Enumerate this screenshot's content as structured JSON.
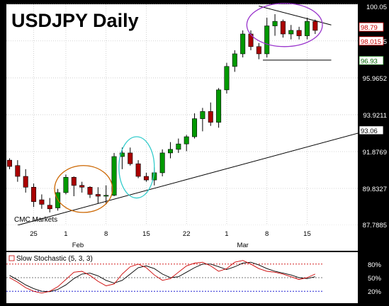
{
  "chart_data": {
    "type": "candlestick",
    "title": "USDJPY Daily",
    "source_label": "CMC Markets",
    "y_ticks": [
      {
        "value": 100.05,
        "label": "100.05"
      },
      {
        "value": 98.0152,
        "label": "98.015"
      },
      {
        "value": 95.9652,
        "label": "95.9652"
      },
      {
        "value": 93.9211,
        "label": "93.9211"
      },
      {
        "value": 91.8769,
        "label": "91.8769"
      },
      {
        "value": 89.8327,
        "label": "89.8327"
      },
      {
        "value": 87.7885,
        "label": "87.7885"
      }
    ],
    "y_range": [
      87.7885,
      100.05
    ],
    "x_ticks": [
      {
        "index": 3,
        "label": "25"
      },
      {
        "index": 7,
        "label": "1"
      },
      {
        "index": 12,
        "label": "8"
      },
      {
        "index": 17,
        "label": "15"
      },
      {
        "index": 22,
        "label": "22"
      },
      {
        "index": 27,
        "label": "1"
      },
      {
        "index": 32,
        "label": "8"
      },
      {
        "index": 37,
        "label": "15"
      }
    ],
    "month_labels": [
      {
        "index": 8.5,
        "label": "Feb"
      },
      {
        "index": 29,
        "label": "Mar"
      }
    ],
    "bar_count": 39,
    "price_tags": [
      {
        "value": 98.79,
        "label": "98.79",
        "color": "#cc0000",
        "bg": "#ffffff"
      },
      {
        "value": 98.015,
        "label": "98.015",
        "color": "#cc0000",
        "bg": "#ffffff"
      },
      {
        "value": 96.93,
        "label": "96.93",
        "color": "#006600",
        "bg": "#ffffff"
      },
      {
        "value": 93.06,
        "label": "93.06",
        "color": "#000000",
        "bg": "#ffffff"
      }
    ],
    "candles": [
      {
        "i": 0,
        "o": 91.4,
        "h": 91.5,
        "l": 90.9,
        "c": 91.05
      },
      {
        "i": 1,
        "o": 91.1,
        "h": 91.4,
        "l": 90.2,
        "c": 90.5
      },
      {
        "i": 2,
        "o": 90.5,
        "h": 90.9,
        "l": 89.6,
        "c": 89.9
      },
      {
        "i": 3,
        "o": 89.9,
        "h": 90.1,
        "l": 88.8,
        "c": 89.1
      },
      {
        "i": 4,
        "o": 89.2,
        "h": 89.5,
        "l": 88.7,
        "c": 88.95
      },
      {
        "i": 5,
        "o": 88.9,
        "h": 89.3,
        "l": 88.5,
        "c": 88.7
      },
      {
        "i": 6,
        "o": 88.75,
        "h": 89.8,
        "l": 88.6,
        "c": 89.6
      },
      {
        "i": 7,
        "o": 89.6,
        "h": 90.6,
        "l": 89.5,
        "c": 90.45
      },
      {
        "i": 8,
        "o": 90.45,
        "h": 90.5,
        "l": 89.4,
        "c": 90.0
      },
      {
        "i": 9,
        "o": 90.0,
        "h": 90.2,
        "l": 89.6,
        "c": 89.9
      },
      {
        "i": 10,
        "o": 89.9,
        "h": 89.95,
        "l": 89.3,
        "c": 89.5
      },
      {
        "i": 11,
        "o": 89.5,
        "h": 89.9,
        "l": 89.0,
        "c": 89.4
      },
      {
        "i": 12,
        "o": 89.4,
        "h": 90.0,
        "l": 88.95,
        "c": 89.45
      },
      {
        "i": 13,
        "o": 89.45,
        "h": 91.8,
        "l": 89.4,
        "c": 91.6
      },
      {
        "i": 14,
        "o": 91.6,
        "h": 92.1,
        "l": 90.9,
        "c": 91.8
      },
      {
        "i": 15,
        "o": 91.8,
        "h": 92.1,
        "l": 91.1,
        "c": 91.2
      },
      {
        "i": 16,
        "o": 91.2,
        "h": 91.4,
        "l": 90.4,
        "c": 90.5
      },
      {
        "i": 17,
        "o": 90.5,
        "h": 90.7,
        "l": 90.2,
        "c": 90.3
      },
      {
        "i": 18,
        "o": 90.3,
        "h": 91.0,
        "l": 90.0,
        "c": 90.7
      },
      {
        "i": 19,
        "o": 90.7,
        "h": 92.0,
        "l": 90.5,
        "c": 91.8
      },
      {
        "i": 20,
        "o": 91.8,
        "h": 92.4,
        "l": 91.5,
        "c": 92.0
      },
      {
        "i": 21,
        "o": 92.0,
        "h": 92.6,
        "l": 91.8,
        "c": 92.3
      },
      {
        "i": 22,
        "o": 92.3,
        "h": 92.8,
        "l": 91.9,
        "c": 92.7
      },
      {
        "i": 23,
        "o": 92.7,
        "h": 94.0,
        "l": 92.6,
        "c": 93.7
      },
      {
        "i": 24,
        "o": 93.7,
        "h": 94.3,
        "l": 93.0,
        "c": 94.1
      },
      {
        "i": 25,
        "o": 94.1,
        "h": 94.6,
        "l": 93.3,
        "c": 93.5
      },
      {
        "i": 26,
        "o": 93.5,
        "h": 95.4,
        "l": 93.2,
        "c": 95.3
      },
      {
        "i": 27,
        "o": 95.3,
        "h": 96.8,
        "l": 95.1,
        "c": 96.6
      },
      {
        "i": 28,
        "o": 96.6,
        "h": 97.5,
        "l": 96.3,
        "c": 97.3
      },
      {
        "i": 29,
        "o": 97.3,
        "h": 98.6,
        "l": 97.1,
        "c": 98.4
      },
      {
        "i": 30,
        "o": 98.4,
        "h": 98.6,
        "l": 97.5,
        "c": 97.7
      },
      {
        "i": 31,
        "o": 97.7,
        "h": 97.9,
        "l": 97.0,
        "c": 97.3
      },
      {
        "i": 32,
        "o": 97.3,
        "h": 99.3,
        "l": 97.1,
        "c": 98.85
      },
      {
        "i": 33,
        "o": 98.85,
        "h": 99.5,
        "l": 98.3,
        "c": 99.1
      },
      {
        "i": 34,
        "o": 99.1,
        "h": 99.2,
        "l": 98.2,
        "c": 98.4
      },
      {
        "i": 35,
        "o": 98.4,
        "h": 98.9,
        "l": 98.1,
        "c": 98.6
      },
      {
        "i": 36,
        "o": 98.6,
        "h": 98.8,
        "l": 98.1,
        "c": 98.3
      },
      {
        "i": 37,
        "o": 98.3,
        "h": 99.3,
        "l": 98.1,
        "c": 99.1
      },
      {
        "i": 38,
        "o": 99.1,
        "h": 99.2,
        "l": 98.4,
        "c": 98.6
      }
    ],
    "trendlines": [
      {
        "from": {
          "i": 1,
          "v": 87.7885
        },
        "to": {
          "i": 45,
          "v": 93.1
        },
        "color": "#000000"
      },
      {
        "from": {
          "i": 31,
          "v": 99.95
        },
        "to": {
          "i": 40,
          "v": 98.9
        },
        "color": "#000000"
      },
      {
        "from": {
          "i": 31.5,
          "v": 96.95
        },
        "to": {
          "i": 40,
          "v": 96.95
        },
        "color": "#000000"
      }
    ],
    "circles": [
      {
        "cx_i": 9.2,
        "cy_v": 89.8,
        "rx_i": 3.6,
        "ry_v": 1.3,
        "color": "#cc6600"
      },
      {
        "cx_i": 15.8,
        "cy_v": 91.0,
        "rx_i": 2.2,
        "ry_v": 1.7,
        "color": "#33cccc"
      },
      {
        "cx_i": 34.2,
        "cy_v": 98.9,
        "rx_i": 4.7,
        "ry_v": 1.2,
        "color": "#9933cc"
      }
    ],
    "bull_color": "#009900",
    "bear_color": "#aa0000",
    "indicator": {
      "label": "Slow Stochastic (5, 3, 3)",
      "levels": [
        {
          "value": 80,
          "label": "80%",
          "color": "#cc0000"
        },
        {
          "value": 50,
          "label": "50%",
          "color": "#777777"
        },
        {
          "value": 20,
          "label": "20%",
          "color": "#0000cc"
        }
      ],
      "k_color": "#cc0000",
      "d_color": "#000000",
      "k": [
        50,
        40,
        28,
        20,
        16,
        20,
        30,
        46,
        62,
        64,
        55,
        42,
        32,
        36,
        58,
        74,
        80,
        72,
        56,
        44,
        48,
        62,
        76,
        82,
        84,
        76,
        64,
        70,
        84,
        88,
        80,
        70,
        64,
        62,
        58,
        52,
        46,
        50,
        58
      ],
      "d": [
        55,
        45,
        34,
        26,
        20,
        19,
        24,
        34,
        48,
        58,
        60,
        54,
        44,
        38,
        44,
        58,
        72,
        76,
        70,
        58,
        50,
        52,
        62,
        72,
        80,
        80,
        74,
        68,
        74,
        82,
        84,
        78,
        70,
        64,
        60,
        56,
        50,
        48,
        52
      ]
    }
  }
}
